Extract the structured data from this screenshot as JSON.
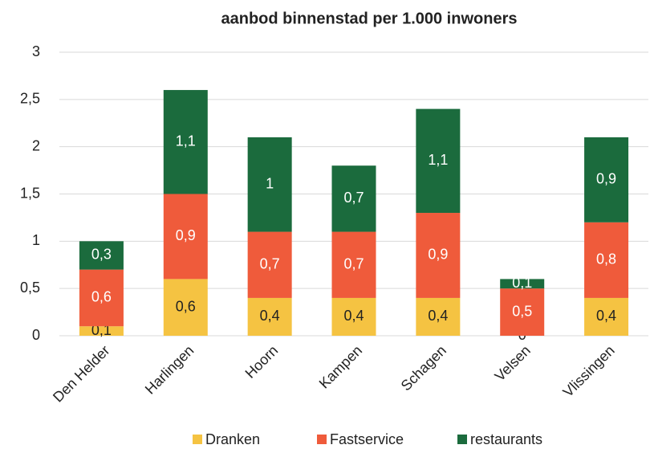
{
  "chart_data": {
    "type": "stacked_bar",
    "title": "aanbod binnenstad per 1.000 inwoners",
    "categories": [
      "Den Helder",
      "Harlingen",
      "Hoorn",
      "Kampen",
      "Schagen",
      "Velsen",
      "Vlissingen"
    ],
    "series": [
      {
        "name": "Dranken",
        "color": "#f5c342",
        "values": [
          0.1,
          0.6,
          0.4,
          0.4,
          0.4,
          0,
          0.4
        ],
        "value_labels": [
          "0,1",
          "0,6",
          "0,4",
          "0,4",
          "0,4",
          "0",
          "0,4"
        ]
      },
      {
        "name": "Fastservice",
        "color": "#ef5b3b",
        "values": [
          0.6,
          0.9,
          0.7,
          0.7,
          0.9,
          0.5,
          0.8
        ],
        "value_labels": [
          "0,6",
          "0,9",
          "0,7",
          "0,7",
          "0,9",
          "0,5",
          "0,8"
        ]
      },
      {
        "name": "restaurants",
        "color": "#1b6b3d",
        "values": [
          0.3,
          1.1,
          1,
          0.7,
          1.1,
          0.1,
          0.9
        ],
        "value_labels": [
          "0,3",
          "1,1",
          "1",
          "0,7",
          "1,1",
          "0,1",
          "0,9"
        ]
      }
    ],
    "ylim": [
      0,
      3
    ],
    "yticks": [
      0,
      {
        "value": 0.5,
        "label": "0,5"
      },
      1,
      {
        "value": 1.5,
        "label": "1,5"
      },
      2,
      {
        "value": 2.5,
        "label": "2,5"
      },
      3
    ],
    "grid": true,
    "legend": "bottom"
  }
}
